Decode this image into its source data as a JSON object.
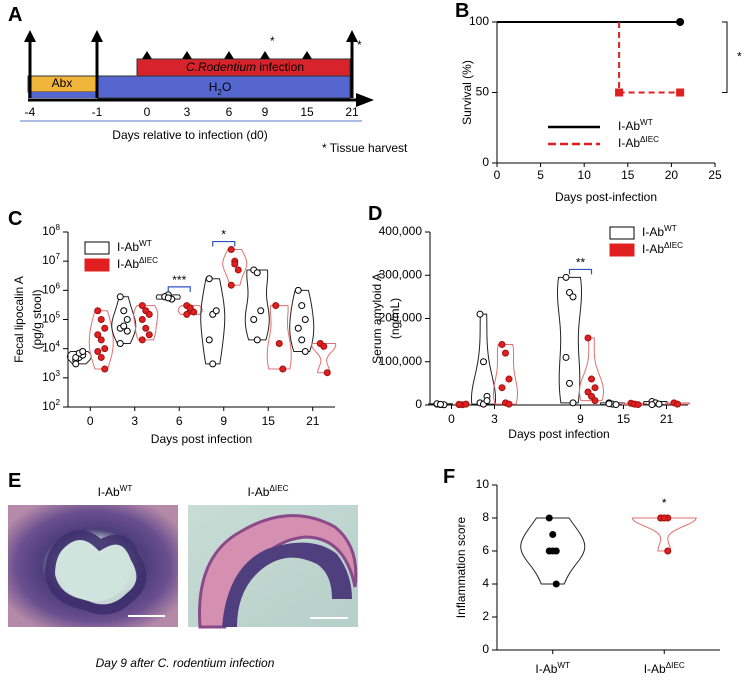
{
  "panel_a": {
    "panel": "A",
    "ticks": [
      "-4",
      "-1",
      "0",
      "3",
      "6",
      "9",
      "15",
      "21"
    ],
    "abx": "Abx",
    "water": [
      "H",
      "2",
      "O"
    ],
    "infection": [
      "C.Rodentium",
      " infection"
    ],
    "harvest_mark": "*",
    "xlabel": "Days relative to infection (d0)",
    "note": "* Tissue harvest"
  },
  "chart_data": [
    {
      "panel": "B",
      "type": "line",
      "ylabel": [
        "Survival (%)"
      ],
      "xlabel": "Days post-infection",
      "xlim": [
        0,
        25
      ],
      "xticks": [
        0,
        5,
        10,
        15,
        20,
        25
      ],
      "ylim": [
        0,
        100
      ],
      "yticks": [
        0,
        50,
        100
      ],
      "series": [
        {
          "name": "I-Ab",
          "name_sup": "WT",
          "color": "#000000",
          "dash": false,
          "marker": "circle",
          "x": [
            0,
            21
          ],
          "values": [
            100,
            100
          ],
          "markers": [
            false,
            true
          ]
        },
        {
          "name": "I-Ab",
          "name_sup": "ΔIEC",
          "color": "#e02020",
          "dash": true,
          "marker": "square",
          "x": [
            14,
            14,
            21
          ],
          "values": [
            100,
            50,
            50
          ],
          "markers": [
            false,
            true,
            true
          ]
        }
      ],
      "annotations": [
        {
          "text": "*"
        }
      ]
    },
    {
      "panel": "C",
      "type": "violin",
      "log": true,
      "ylabel": [
        "Fecal lipocalin A",
        "(pg/g stool)"
      ],
      "xlabel": "Days post infection",
      "categories": [
        "0",
        "3",
        "6",
        "9",
        "15",
        "21"
      ],
      "ylim": [
        100,
        100000000
      ],
      "yticks": [
        {
          "value": 100,
          "label": "10",
          "sup": "2"
        },
        {
          "value": 1000,
          "label": "10",
          "sup": "3"
        },
        {
          "value": 10000,
          "label": "10",
          "sup": "4"
        },
        {
          "value": 100000,
          "label": "10",
          "sup": "5"
        },
        {
          "value": 1000000,
          "label": "10",
          "sup": "6"
        },
        {
          "value": 10000000,
          "label": "10",
          "sup": "7"
        },
        {
          "value": 100000000,
          "label": "10",
          "sup": "8"
        }
      ],
      "series": [
        {
          "name": "I-Ab",
          "name_sup": "WT",
          "color": "#000000",
          "fill": "#ffffff",
          "values": [
            [
              4000,
              5000,
              6000,
              5000,
              7000,
              8000,
              3000
            ],
            [
              600000,
              200000,
              100000,
              50000,
              60000,
              40000,
              15000
            ],
            [
              600000,
              700000,
              500000,
              600000,
              550000
            ],
            [
              2500000,
              150000,
              200000,
              20000,
              3000
            ],
            [
              5000000,
              4000000,
              200000,
              100000,
              20000
            ],
            [
              1000000,
              300000,
              100000,
              50000,
              20000,
              8000
            ]
          ]
        },
        {
          "name": "I-Ab",
          "name_sup": "ΔIEC",
          "color": "#e02020",
          "fill": "#e02020",
          "values": [
            [
              200000,
              100000,
              50000,
              30000,
              20000,
              10000,
              8000,
              5000,
              2000
            ],
            [
              300000,
              200000,
              150000,
              100000,
              50000,
              30000,
              20000
            ],
            [
              300000,
              200000,
              180000,
              150000,
              250000
            ],
            [
              25000000,
              10000000,
              5000000,
              1500000,
              8000000
            ],
            [
              300000,
              15000,
              2000
            ],
            [
              15000,
              12000,
              1500
            ]
          ]
        }
      ],
      "annotations": [
        {
          "text": "***",
          "category": "6",
          "bracket": true
        },
        {
          "text": "*",
          "category": "9",
          "bracket": true
        }
      ]
    },
    {
      "panel": "D",
      "type": "violin",
      "log": false,
      "ylabel": [
        "Serum amyloid A",
        "(ng/mL)"
      ],
      "xlabel": "Days post infection",
      "categories": [
        "0",
        "3",
        null,
        "9",
        "15",
        "21"
      ],
      "ylim": [
        0,
        400000
      ],
      "yticks": [
        0,
        {
          "value": 100000,
          "label": "100,000"
        },
        {
          "value": 200000,
          "label": "200,000"
        },
        {
          "value": 300000,
          "label": "300,000"
        },
        {
          "value": 400000,
          "label": "400,000"
        }
      ],
      "series": [
        {
          "name": "I-Ab",
          "name_sup": "WT",
          "color": "#000000",
          "fill": "#ffffff",
          "values": [
            [
              2000,
              1000,
              500,
              3000,
              1500
            ],
            [
              210000,
              100000,
              20000,
              5000,
              2000,
              10000
            ],
            [],
            [
              295000,
              260000,
              250000,
              110000,
              50000,
              5000
            ],
            [
              5000,
              2000,
              1000,
              3000
            ],
            [
              8000,
              5000,
              2000,
              1000
            ]
          ]
        },
        {
          "name": "I-Ab",
          "name_sup": "ΔIEC",
          "color": "#e02020",
          "fill": "#e02020",
          "values": [
            [
              1000,
              500,
              2000,
              1500
            ],
            [
              140000,
              120000,
              60000,
              40000,
              5000,
              2000
            ],
            [],
            [
              155000,
              60000,
              40000,
              30000,
              20000,
              10000
            ],
            [
              4000,
              2000,
              1000
            ],
            [
              5000,
              2000
            ]
          ]
        }
      ],
      "annotations": [
        {
          "text": "**",
          "category": "9",
          "bracket": true
        }
      ]
    },
    {
      "panel": "F",
      "type": "violin",
      "log": false,
      "ylabel": [
        "Inflammation score"
      ],
      "categories": [
        "I-Ab",
        "I-Ab"
      ],
      "category_sup": [
        "WT",
        "ΔIEC"
      ],
      "ylim": [
        0,
        10
      ],
      "yticks": [
        0,
        2,
        4,
        6,
        8,
        10
      ],
      "series": [
        {
          "color": "#000000",
          "fill": "#000000",
          "values": [
            [
              8,
              7,
              6,
              6,
              6,
              4
            ],
            []
          ]
        },
        {
          "color": "#e02020",
          "fill": "#e02020",
          "values": [
            [],
            [
              8,
              8,
              8,
              8,
              8,
              6
            ]
          ]
        }
      ],
      "annotations": [
        {
          "text": "*",
          "category": "I-Ab",
          "sup": "ΔIEC",
          "bracket": false
        }
      ]
    }
  ],
  "panel_e": {
    "panel": "E",
    "images": [
      {
        "title": "I-Ab",
        "sup": "WT"
      },
      {
        "title": "I-Ab",
        "sup": "ΔIEC"
      }
    ],
    "caption": [
      "Day 9 after ",
      "C. rodentium",
      " infection"
    ]
  }
}
